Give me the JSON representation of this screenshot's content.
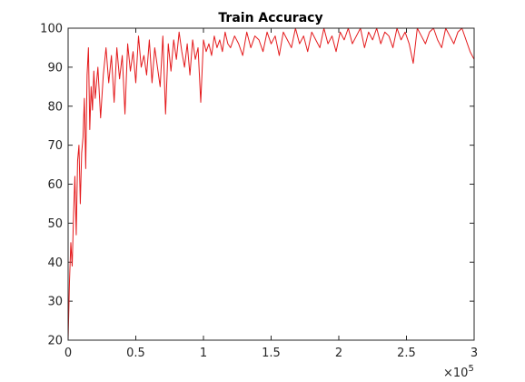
{
  "chart_data": {
    "type": "line",
    "title": "Train Accuracy",
    "xlabel": "",
    "ylabel": "",
    "xlim": [
      0,
      300000
    ],
    "ylim": [
      20,
      100
    ],
    "x_ticks": [
      0,
      50000,
      100000,
      150000,
      200000,
      250000,
      300000
    ],
    "x_tick_labels": [
      "0",
      "0.5",
      "1",
      "1.5",
      "2",
      "2.5",
      "3"
    ],
    "x_exponent_base": "×10",
    "x_exponent_power": "5",
    "y_ticks": [
      20,
      30,
      40,
      50,
      60,
      70,
      80,
      90,
      100
    ],
    "y_tick_labels": [
      "20",
      "30",
      "40",
      "50",
      "60",
      "70",
      "80",
      "90",
      "100"
    ],
    "grid": false,
    "series": [
      {
        "color": "#e41a1c",
        "x": [
          0,
          1000,
          2000,
          3000,
          4000,
          5000,
          6000,
          7000,
          8000,
          9000,
          10000,
          11000,
          12000,
          13000,
          14000,
          15000,
          16000,
          17000,
          18000,
          19000,
          20000,
          22000,
          24000,
          26000,
          28000,
          30000,
          32000,
          34000,
          36000,
          38000,
          40000,
          42000,
          44000,
          46000,
          48000,
          50000,
          52000,
          54000,
          56000,
          58000,
          60000,
          62000,
          64000,
          66000,
          68000,
          70000,
          72000,
          74000,
          76000,
          78000,
          80000,
          82000,
          84000,
          86000,
          88000,
          90000,
          92000,
          94000,
          96000,
          98000,
          100000,
          102000,
          104000,
          106000,
          108000,
          110000,
          112000,
          114000,
          116000,
          118000,
          120000,
          123000,
          126000,
          129000,
          132000,
          135000,
          138000,
          141000,
          144000,
          147000,
          150000,
          153000,
          156000,
          159000,
          162000,
          165000,
          168000,
          171000,
          174000,
          177000,
          180000,
          183000,
          186000,
          189000,
          192000,
          195000,
          198000,
          201000,
          204000,
          207000,
          210000,
          213000,
          216000,
          219000,
          222000,
          225000,
          228000,
          231000,
          234000,
          237000,
          240000,
          243000,
          246000,
          249000,
          252000,
          255000,
          258000,
          261000,
          264000,
          267000,
          270000,
          273000,
          276000,
          279000,
          282000,
          285000,
          288000,
          291000,
          294000,
          297000,
          300000
        ],
        "y": [
          20,
          35,
          45,
          39,
          52,
          62,
          47,
          66,
          70,
          55,
          68,
          72,
          82,
          64,
          88,
          95,
          74,
          85,
          79,
          89,
          82,
          90,
          77,
          88,
          95,
          86,
          93,
          81,
          95,
          87,
          93,
          78,
          96,
          89,
          94,
          86,
          98,
          90,
          93,
          88,
          97,
          86,
          95,
          90,
          85,
          98,
          78,
          96,
          89,
          97,
          92,
          99,
          94,
          90,
          96,
          88,
          97,
          92,
          95,
          81,
          97,
          94,
          96,
          93,
          98,
          95,
          97,
          94,
          99,
          96,
          95,
          98,
          96,
          93,
          99,
          95,
          98,
          97,
          94,
          99,
          96,
          98,
          93,
          99,
          97,
          95,
          100,
          96,
          98,
          94,
          99,
          97,
          95,
          100,
          96,
          98,
          94,
          99,
          97,
          100,
          96,
          98,
          100,
          95,
          99,
          97,
          100,
          96,
          99,
          98,
          95,
          100,
          97,
          99,
          96,
          91,
          100,
          98,
          96,
          99,
          100,
          97,
          95,
          100,
          98,
          96,
          99,
          100,
          97,
          94,
          92
        ]
      }
    ]
  }
}
